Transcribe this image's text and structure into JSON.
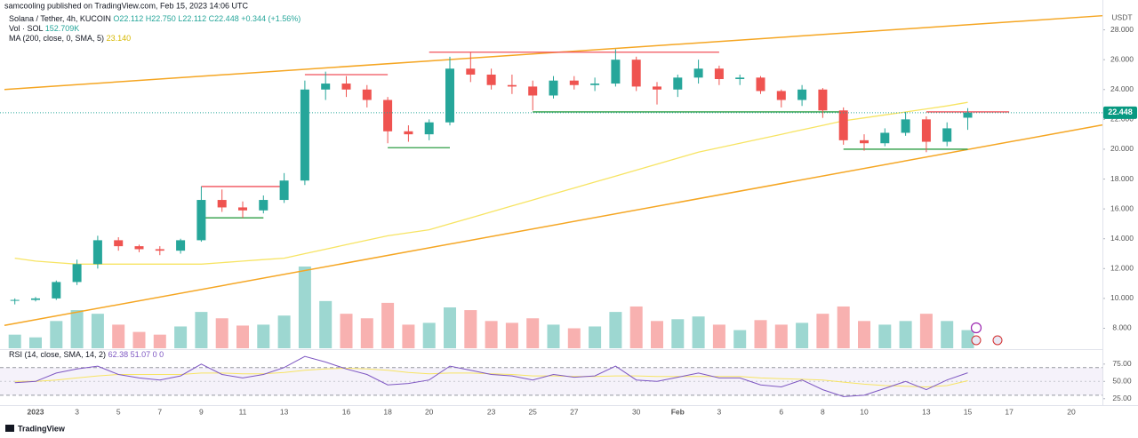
{
  "header": {
    "publisher": "samcooling published on TradingView.com, Feb 15, 2023 14:06 UTC",
    "symbol": "Solana / Tether, 4h, KUCOIN",
    "ohlc": "O22.112 H22.750 L22.112 C22.448 +0.344 (+1.56%)",
    "volume": "Vol · SOL",
    "volume_value": "152.709K",
    "ma": "MA (200, close, 0, SMA, 5)",
    "ma_value": "23.140",
    "rsi": "RSI (14, close, SMA, 14, 2)",
    "rsi_values": "62.38  51.07  0  0"
  },
  "footer": {
    "brand": "TradingView"
  },
  "chart_data": [
    {
      "type": "candlestick",
      "y_unit": "USDT",
      "categories": [
        null,
        "2023",
        null,
        "3",
        null,
        "5",
        null,
        "7",
        null,
        "9",
        null,
        "11",
        null,
        "13",
        null,
        null,
        "16",
        null,
        "18",
        null,
        "20",
        null,
        null,
        "23",
        null,
        "25",
        null,
        "27",
        null,
        null,
        "30",
        null,
        "Feb",
        null,
        "3",
        null,
        null,
        "6",
        null,
        "8",
        null,
        "10",
        null,
        null,
        "13",
        null,
        "15",
        null,
        "17",
        null,
        null,
        "20",
        null
      ],
      "open": [
        9.9,
        9.9,
        10.0,
        11.1,
        12.3,
        13.9,
        13.5,
        13.3,
        13.2,
        13.9,
        16.6,
        16.1,
        15.9,
        16.6,
        17.9,
        24.0,
        24.4,
        24.0,
        23.3,
        21.2,
        21.0,
        21.8,
        25.4,
        25.0,
        24.3,
        24.2,
        23.6,
        24.6,
        24.3,
        24.4,
        26.0,
        24.2,
        24.0,
        24.8,
        25.4,
        24.7,
        24.8,
        23.9,
        23.3,
        24.0,
        22.6,
        20.6,
        20.4,
        21.1,
        22.0,
        20.5,
        22.112,
        null,
        null,
        null,
        null,
        null,
        null
      ],
      "high": [
        10.0,
        10.1,
        11.2,
        12.6,
        14.2,
        14.1,
        13.6,
        13.5,
        14.0,
        17.5,
        17.3,
        16.5,
        16.9,
        18.4,
        24.6,
        25.2,
        24.9,
        24.3,
        23.5,
        21.6,
        22.0,
        26.2,
        26.5,
        25.4,
        25.0,
        24.6,
        24.9,
        24.9,
        24.8,
        26.7,
        26.2,
        24.5,
        25.0,
        26.0,
        25.6,
        25.0,
        24.9,
        24.0,
        24.3,
        24.1,
        22.8,
        21.0,
        21.4,
        22.5,
        22.2,
        21.8,
        22.75,
        null,
        null,
        null,
        null,
        null,
        null
      ],
      "low": [
        9.6,
        9.8,
        9.9,
        10.9,
        12.0,
        13.2,
        13.1,
        12.9,
        13.0,
        13.8,
        15.8,
        15.4,
        15.7,
        16.4,
        17.6,
        23.3,
        23.5,
        22.8,
        20.4,
        20.5,
        20.6,
        21.6,
        24.5,
        24.0,
        23.7,
        22.6,
        23.4,
        24.0,
        23.9,
        24.2,
        23.9,
        23.0,
        23.5,
        24.4,
        24.3,
        24.3,
        23.7,
        22.8,
        22.9,
        22.1,
        20.3,
        19.9,
        20.2,
        20.9,
        19.8,
        20.2,
        21.3,
        null,
        null,
        null,
        null,
        null,
        null
      ],
      "close": [
        9.9,
        10.0,
        11.1,
        12.3,
        13.9,
        13.5,
        13.3,
        13.2,
        13.9,
        16.6,
        16.1,
        15.9,
        16.6,
        17.9,
        24.0,
        24.4,
        24.0,
        23.3,
        21.2,
        21.0,
        21.8,
        25.4,
        25.0,
        24.3,
        24.2,
        23.6,
        24.6,
        24.3,
        24.4,
        26.0,
        24.2,
        24.0,
        24.8,
        25.4,
        24.7,
        24.8,
        23.9,
        23.3,
        24.0,
        22.6,
        20.6,
        20.4,
        21.1,
        22.0,
        20.5,
        21.4,
        22.448,
        null,
        null,
        null,
        null,
        null,
        null
      ],
      "up_color": "#26a69a",
      "down_color": "#ef5350",
      "volume": {
        "values": [
          150,
          120,
          300,
          420,
          380,
          260,
          180,
          150,
          240,
          400,
          330,
          250,
          260,
          360,
          900,
          520,
          380,
          330,
          500,
          260,
          280,
          450,
          420,
          300,
          280,
          330,
          260,
          220,
          240,
          400,
          460,
          300,
          320,
          350,
          260,
          200,
          310,
          260,
          280,
          380,
          460,
          300,
          260,
          300,
          380,
          300,
          200,
          null,
          null,
          null,
          null,
          null,
          null
        ]
      },
      "series": [
        {
          "name": "MA (200, close, 0, SMA, 5)",
          "color": "#f7e463",
          "values": [
            12.7,
            12.5,
            12.4,
            12.3,
            12.3,
            12.3,
            12.3,
            12.3,
            12.3,
            12.3,
            12.4,
            12.5,
            12.6,
            12.7,
            13.0,
            13.3,
            13.6,
            13.9,
            14.2,
            14.4,
            14.6,
            15.0,
            15.4,
            15.8,
            16.2,
            16.6,
            17.0,
            17.4,
            17.8,
            18.2,
            18.6,
            19.0,
            19.4,
            19.8,
            20.1,
            20.4,
            20.7,
            21.0,
            21.3,
            21.6,
            21.9,
            22.1,
            22.3,
            22.5,
            22.7,
            22.9,
            23.14,
            null,
            null,
            null,
            null,
            null,
            null
          ]
        }
      ],
      "trendlines": [
        {
          "color": "#f5a623",
          "from": [
            0,
            24.05
          ],
          "to": [
            52,
            28.9
          ]
        },
        {
          "color": "#f5a623",
          "from": [
            0,
            8.32
          ],
          "to": [
            52,
            21.5
          ]
        }
      ],
      "levels": [
        {
          "color": "#f0505a",
          "from": 9,
          "to": 13,
          "value": 17.5
        },
        {
          "color": "#2e9e44",
          "from": 9,
          "to": 12,
          "value": 15.4
        },
        {
          "color": "#f0505a",
          "from": 14,
          "to": 18,
          "value": 25.0
        },
        {
          "color": "#2e9e44",
          "from": 18,
          "to": 21,
          "value": 20.1
        },
        {
          "color": "#f0505a",
          "from": 20,
          "to": 34,
          "value": 26.5
        },
        {
          "color": "#2e9e44",
          "from": 25,
          "to": 40,
          "value": 22.5
        },
        {
          "color": "#2e9e44",
          "from": 40,
          "to": 46,
          "value": 20.0
        },
        {
          "color": "#f0505a",
          "from": 44,
          "to": 48,
          "value": 22.5
        }
      ],
      "last_price": 22.448,
      "ylim": [
        6.6,
        30
      ],
      "yticks": [
        {
          "value": 8,
          "label": "8.000"
        },
        {
          "value": 10,
          "label": "10.000"
        },
        {
          "value": 12,
          "label": "12.000"
        },
        {
          "value": 14,
          "label": "14.000"
        },
        {
          "value": 16,
          "label": "16.000"
        },
        {
          "value": 18,
          "label": "18.000"
        },
        {
          "value": 20,
          "label": "20.000"
        },
        {
          "value": 22,
          "label": "22.000"
        },
        {
          "value": 24,
          "label": "24.000"
        },
        {
          "value": 26,
          "label": "26.000"
        },
        {
          "value": 28,
          "label": "28.000"
        }
      ]
    },
    {
      "type": "line",
      "series": [
        {
          "name": "RSI",
          "color": "#7e57c2",
          "values": [
            48,
            50,
            62,
            68,
            72,
            60,
            55,
            52,
            58,
            75,
            60,
            55,
            60,
            70,
            86,
            78,
            68,
            60,
            45,
            47,
            52,
            72,
            66,
            60,
            58,
            52,
            60,
            56,
            58,
            72,
            52,
            50,
            56,
            62,
            55,
            55,
            45,
            42,
            52,
            38,
            28,
            30,
            40,
            50,
            38,
            52,
            62.38,
            null,
            null,
            null,
            null,
            null,
            null
          ]
        },
        {
          "name": "RSI-based MA",
          "color": "#f7e463",
          "values": [
            50,
            50,
            52,
            55,
            58,
            60,
            60,
            60,
            60,
            62,
            62,
            61,
            61,
            63,
            66,
            68,
            69,
            68,
            66,
            63,
            61,
            62,
            62,
            61,
            60,
            58,
            58,
            57,
            57,
            58,
            58,
            57,
            57,
            57,
            57,
            57,
            55,
            54,
            53,
            52,
            49,
            46,
            44,
            43,
            42,
            44,
            51.07,
            null,
            null,
            null,
            null,
            null,
            null
          ]
        }
      ],
      "band": [
        30,
        70
      ],
      "ylim": [
        17,
        94
      ],
      "yticks": [
        {
          "value": 25,
          "label": "25.00"
        },
        {
          "value": 50,
          "label": "50.00"
        },
        {
          "value": 75,
          "label": "75.00"
        }
      ]
    }
  ]
}
